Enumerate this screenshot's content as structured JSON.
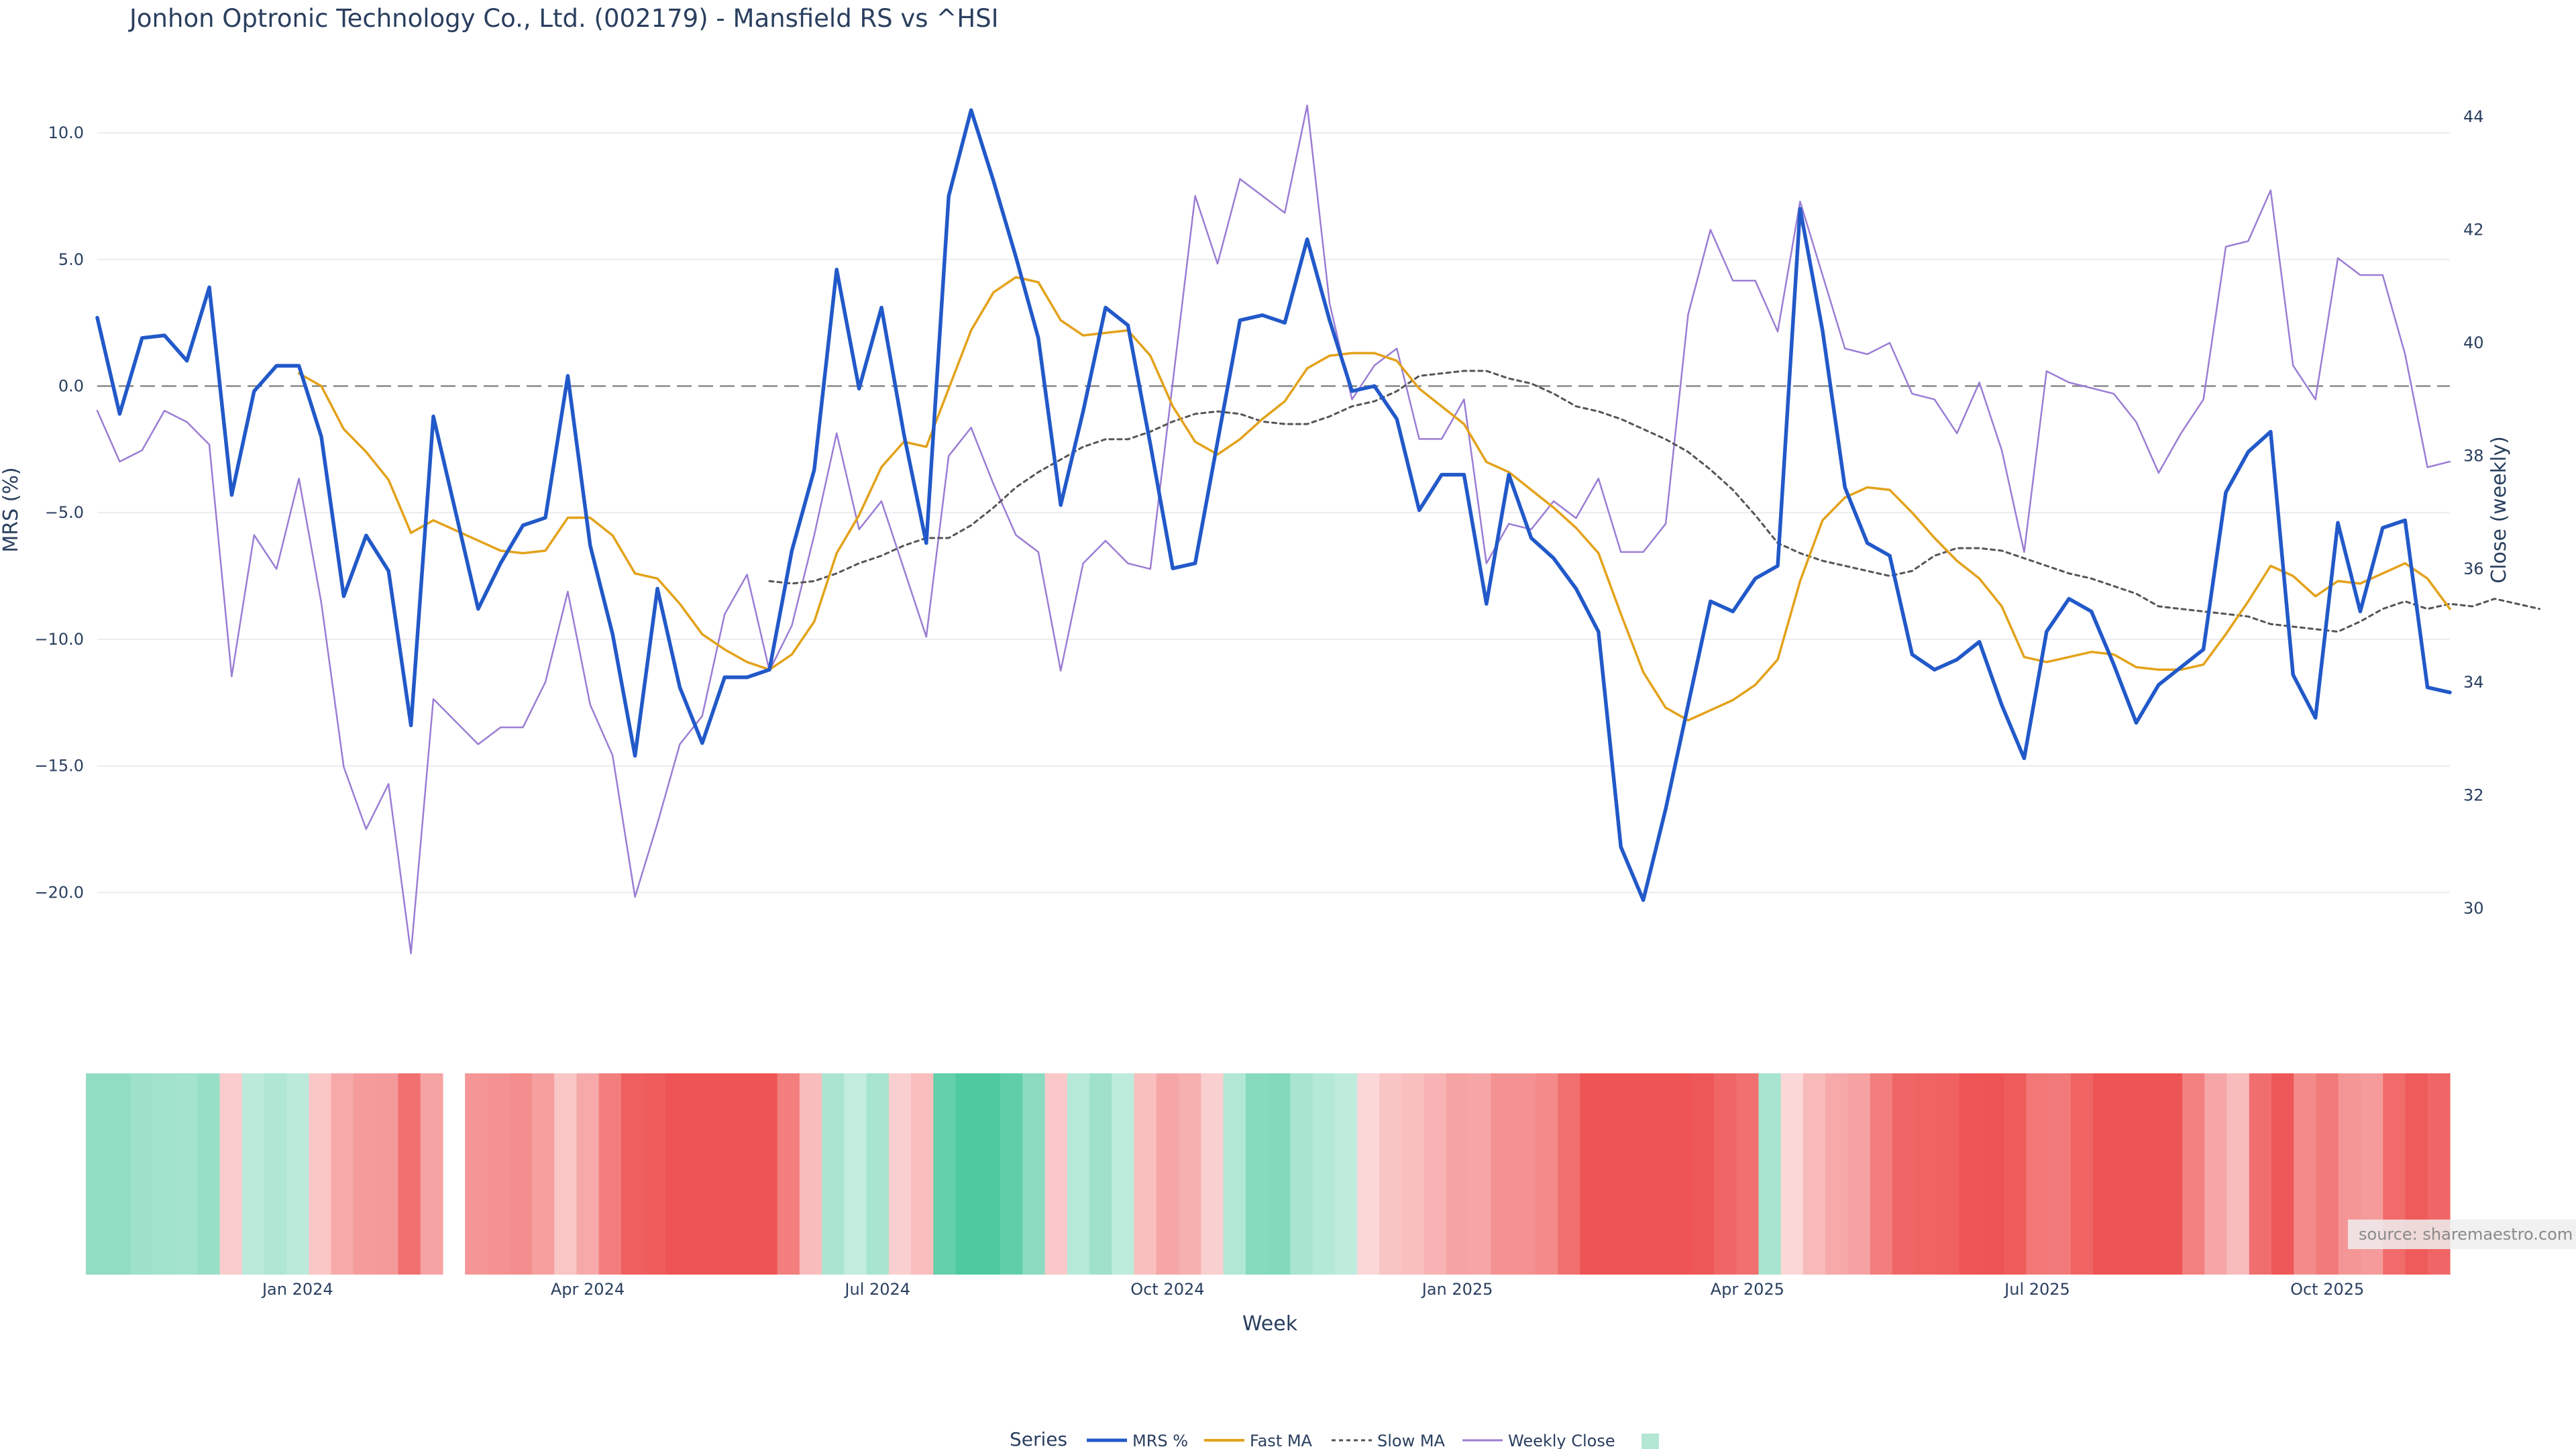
{
  "title": "Jonhon Optronic Technology Co., Ltd. (002179) - Mansfield RS vs ^HSI",
  "source": "source: sharemaestro.com",
  "colors": {
    "mrs": "#2259c9",
    "fast": "#e3a21a",
    "slow": "#555555",
    "close": "#9b7dd4",
    "zero": "#888888",
    "grid": "#ececf2",
    "pos": "#2fbf8f",
    "neg": "#ee5050"
  },
  "chart_data": {
    "type": "line",
    "xlabel": "Week",
    "ylabel": "MRS (%)",
    "y2label": "Close (weekly)",
    "ylim": [
      -23.3,
      12.2
    ],
    "y2lim": [
      28.8,
      44.7
    ],
    "yticks": [
      "10.0",
      "5.0",
      "0.0",
      "−5.0",
      "−10.0",
      "−15.0",
      "−20.0"
    ],
    "ytick_values": [
      10,
      5,
      0,
      -5,
      -10,
      -15,
      -20
    ],
    "y2ticks": [
      "44",
      "42",
      "40",
      "38",
      "36",
      "34",
      "32",
      "30"
    ],
    "y2tick_values": [
      44,
      42,
      40,
      38,
      36,
      34,
      32,
      30
    ],
    "xticks": [
      "Jan 2024",
      "Apr 2024",
      "Jul 2024",
      "Oct 2024",
      "Jan 2025",
      "Apr 2025",
      "Jul 2025",
      "Oct 2025"
    ],
    "xtick_index": [
      9.5,
      22.5,
      35.5,
      48.5,
      61.5,
      74.5,
      87.5,
      100.5
    ],
    "n_weeks": 106,
    "gap_index": 16,
    "legend_title": "Series",
    "series": [
      {
        "name": "MRS %",
        "values": [
          2.7,
          -1.1,
          1.9,
          2.0,
          1.0,
          3.9,
          -4.3,
          -0.2,
          0.8,
          0.8,
          -2.0,
          -8.3,
          -5.9,
          -7.3,
          -13.4,
          -1.2,
          -5.0,
          -8.8,
          -7.0,
          -5.5,
          -5.2,
          0.4,
          -6.3,
          -9.8,
          -14.6,
          -8.0,
          -11.9,
          -14.1,
          -11.5,
          -11.5,
          -11.2,
          -6.5,
          -3.3,
          4.6,
          -0.1,
          3.1,
          -1.9,
          -6.2,
          7.5,
          10.9,
          8.1,
          5.1,
          1.9,
          -4.7,
          -1.0,
          3.1,
          2.4,
          -2.3,
          -7.2,
          -7.0,
          -2.2,
          2.6,
          2.8,
          2.5,
          5.8,
          2.6,
          -0.2,
          0.0,
          -1.3,
          -4.9,
          -3.5,
          -3.5,
          -8.6,
          -3.5,
          -6.0,
          -6.8,
          -8.0,
          -9.7,
          -18.2,
          -20.3,
          -16.7,
          -12.6,
          -8.5,
          -8.9,
          -7.6,
          -7.1,
          7.0,
          2.2,
          -4.0,
          -6.2,
          -6.7,
          -10.6,
          -11.2,
          -10.8,
          -10.1,
          -12.6,
          -14.7,
          -9.7,
          -8.4,
          -8.9,
          -11.0,
          -13.3,
          -11.8,
          -11.1,
          -10.4,
          -4.2,
          -2.6,
          -1.8,
          -11.4,
          -13.1,
          -5.4,
          -8.9,
          -5.6,
          -5.3,
          -11.9,
          -12.1
        ]
      },
      {
        "name": "Fast MA",
        "values": [
          null,
          null,
          null,
          null,
          null,
          null,
          null,
          null,
          null,
          0.5,
          0.0,
          -1.7,
          -2.6,
          -3.7,
          -5.8,
          -5.3,
          -5.7,
          -6.1,
          -6.5,
          -6.6,
          -6.5,
          -5.2,
          -5.2,
          -5.9,
          -7.4,
          -7.6,
          -8.6,
          -9.8,
          -10.4,
          -10.9,
          -11.2,
          -10.6,
          -9.3,
          -6.6,
          -5.1,
          -3.2,
          -2.2,
          -2.4,
          -0.1,
          2.2,
          3.7,
          4.3,
          4.1,
          2.6,
          2.0,
          2.1,
          2.2,
          1.2,
          -0.8,
          -2.2,
          -2.7,
          -2.1,
          -1.3,
          -0.6,
          0.7,
          1.2,
          1.3,
          1.3,
          1.0,
          -0.1,
          -0.8,
          -1.5,
          -3.0,
          -3.4,
          -4.1,
          -4.8,
          -5.6,
          -6.6,
          -9.0,
          -11.3,
          -12.7,
          -13.2,
          -12.8,
          -12.4,
          -11.8,
          -10.8,
          -7.7,
          -5.3,
          -4.4,
          -4.0,
          -4.1,
          -5.0,
          -6.0,
          -6.9,
          -7.6,
          -8.7,
          -10.7,
          -10.9,
          -10.7,
          -10.5,
          -10.6,
          -11.1,
          -11.2,
          -11.2,
          -11.0,
          -9.8,
          -8.5,
          -7.1,
          -7.5,
          -8.3,
          -7.7,
          -7.8,
          -7.4,
          -7.0,
          -7.6,
          -8.8
        ]
      },
      {
        "name": "Slow MA",
        "values": [
          null,
          null,
          null,
          null,
          null,
          null,
          null,
          null,
          null,
          null,
          null,
          null,
          null,
          null,
          null,
          null,
          null,
          null,
          null,
          null,
          null,
          null,
          null,
          null,
          null,
          null,
          null,
          null,
          null,
          null,
          -7.7,
          -7.8,
          -7.7,
          -7.4,
          -7.0,
          -6.7,
          -6.3,
          -6.0,
          -6.0,
          -5.5,
          -4.8,
          -4.0,
          -3.4,
          -2.9,
          -2.4,
          -2.1,
          -2.1,
          -1.8,
          -1.4,
          -1.1,
          -1.0,
          -1.1,
          -1.4,
          -1.5,
          -1.5,
          -1.2,
          -0.8,
          -0.6,
          -0.2,
          0.4,
          0.5,
          0.6,
          0.6,
          0.3,
          0.1,
          -0.3,
          -0.8,
          -1.0,
          -1.3,
          -1.7,
          -2.1,
          -2.6,
          -3.3,
          -4.1,
          -5.1,
          -6.2,
          -6.6,
          -6.9,
          -7.1,
          -7.3,
          -7.5,
          -7.3,
          -6.7,
          -6.4,
          -6.4,
          -6.5,
          -6.8,
          -7.1,
          -7.4,
          -7.6,
          -7.9,
          -8.2,
          -8.7,
          -8.8,
          -8.9,
          -9.0,
          -9.1,
          -9.4,
          -9.5,
          -9.6,
          -9.7,
          -9.3,
          -8.8,
          -8.5,
          -8.8,
          -8.6,
          -8.7,
          -8.4,
          -8.6,
          -8.8
        ]
      },
      {
        "name": "Weekly Close",
        "values": [
          38.8,
          37.9,
          38.1,
          38.8,
          38.6,
          38.2,
          34.1,
          36.6,
          36.0,
          37.6,
          35.4,
          32.5,
          31.4,
          32.2,
          29.2,
          33.7,
          33.3,
          32.9,
          33.2,
          33.2,
          34.0,
          35.6,
          33.6,
          32.7,
          30.2,
          31.5,
          32.9,
          33.4,
          35.2,
          35.9,
          34.2,
          35.0,
          36.6,
          38.4,
          36.7,
          37.2,
          36.0,
          34.8,
          38.0,
          38.5,
          37.5,
          36.6,
          36.3,
          34.2,
          36.1,
          36.5,
          36.1,
          36.0,
          39.3,
          42.6,
          41.4,
          42.9,
          42.6,
          42.3,
          44.2,
          40.7,
          39.0,
          39.6,
          39.9,
          38.3,
          38.3,
          39.0,
          36.1,
          36.8,
          36.7,
          37.2,
          36.9,
          37.6,
          36.3,
          36.3,
          36.8,
          40.5,
          42.0,
          41.1,
          41.1,
          40.2,
          42.5,
          41.2,
          39.9,
          39.8,
          40.0,
          39.1,
          39.0,
          38.4,
          39.3,
          38.1,
          36.3,
          39.5,
          39.3,
          39.2,
          39.1,
          38.6,
          37.7,
          38.4,
          39.0,
          41.7,
          41.8,
          42.7,
          39.6,
          39.0,
          41.5,
          41.2,
          41.2,
          39.8,
          37.8,
          37.9
        ]
      }
    ],
    "heatmap_strip": {
      "description": "MRS regime band: teal = positive, red = negative",
      "values": [
        2.5,
        2.5,
        2.0,
        1.8,
        1.7,
        2.2,
        -1.2,
        0.7,
        1.2,
        0.7,
        -1.6,
        -3.8,
        -4.8,
        -4.9,
        -8.0,
        -4.2,
        null,
        -5.3,
        -5.5,
        -5.9,
        -4.5,
        -1.7,
        -3.8,
        -7.0,
        -9.3,
        -9.5,
        -12.0,
        -12.8,
        -13.0,
        -13.0,
        -12.4,
        -7.0,
        -2.4,
        1.4,
        0.4,
        1.6,
        -1.0,
        -2.3,
        4.5,
        6.8,
        6.0,
        4.6,
        2.8,
        -1.5,
        0.9,
        1.9,
        0.6,
        -2.2,
        -4.0,
        -3.3,
        -1.0,
        1.1,
        3.0,
        3.1,
        1.5,
        1.0,
        0.5,
        -0.4,
        -1.8,
        -2.2,
        -3.0,
        -4.2,
        -4.0,
        -5.5,
        -5.5,
        -6.1,
        -8.1,
        -12.0,
        -14.5,
        -14.5,
        -12.8,
        -11.6,
        -9.8,
        -8.8,
        -8.0,
        1.5,
        -0.4,
        -2.6,
        -3.9,
        -4.3,
        -7.0,
        -8.8,
        -9.0,
        -9.1,
        -10.0,
        -11.7,
        -9.5,
        -7.4,
        -7.3,
        -9.0,
        -10.8,
        -10.3,
        -11.2,
        -10.5,
        -6.8,
        -4.0,
        -2.4,
        -8.2,
        -9.8,
        -6.0,
        -7.3,
        -5.2,
        -4.8,
        -8.4,
        -9.6,
        -8.8
      ]
    }
  },
  "legend": {
    "title": "Series",
    "items": [
      "MRS %",
      "Fast MA",
      "Slow MA",
      "Weekly Close"
    ]
  }
}
